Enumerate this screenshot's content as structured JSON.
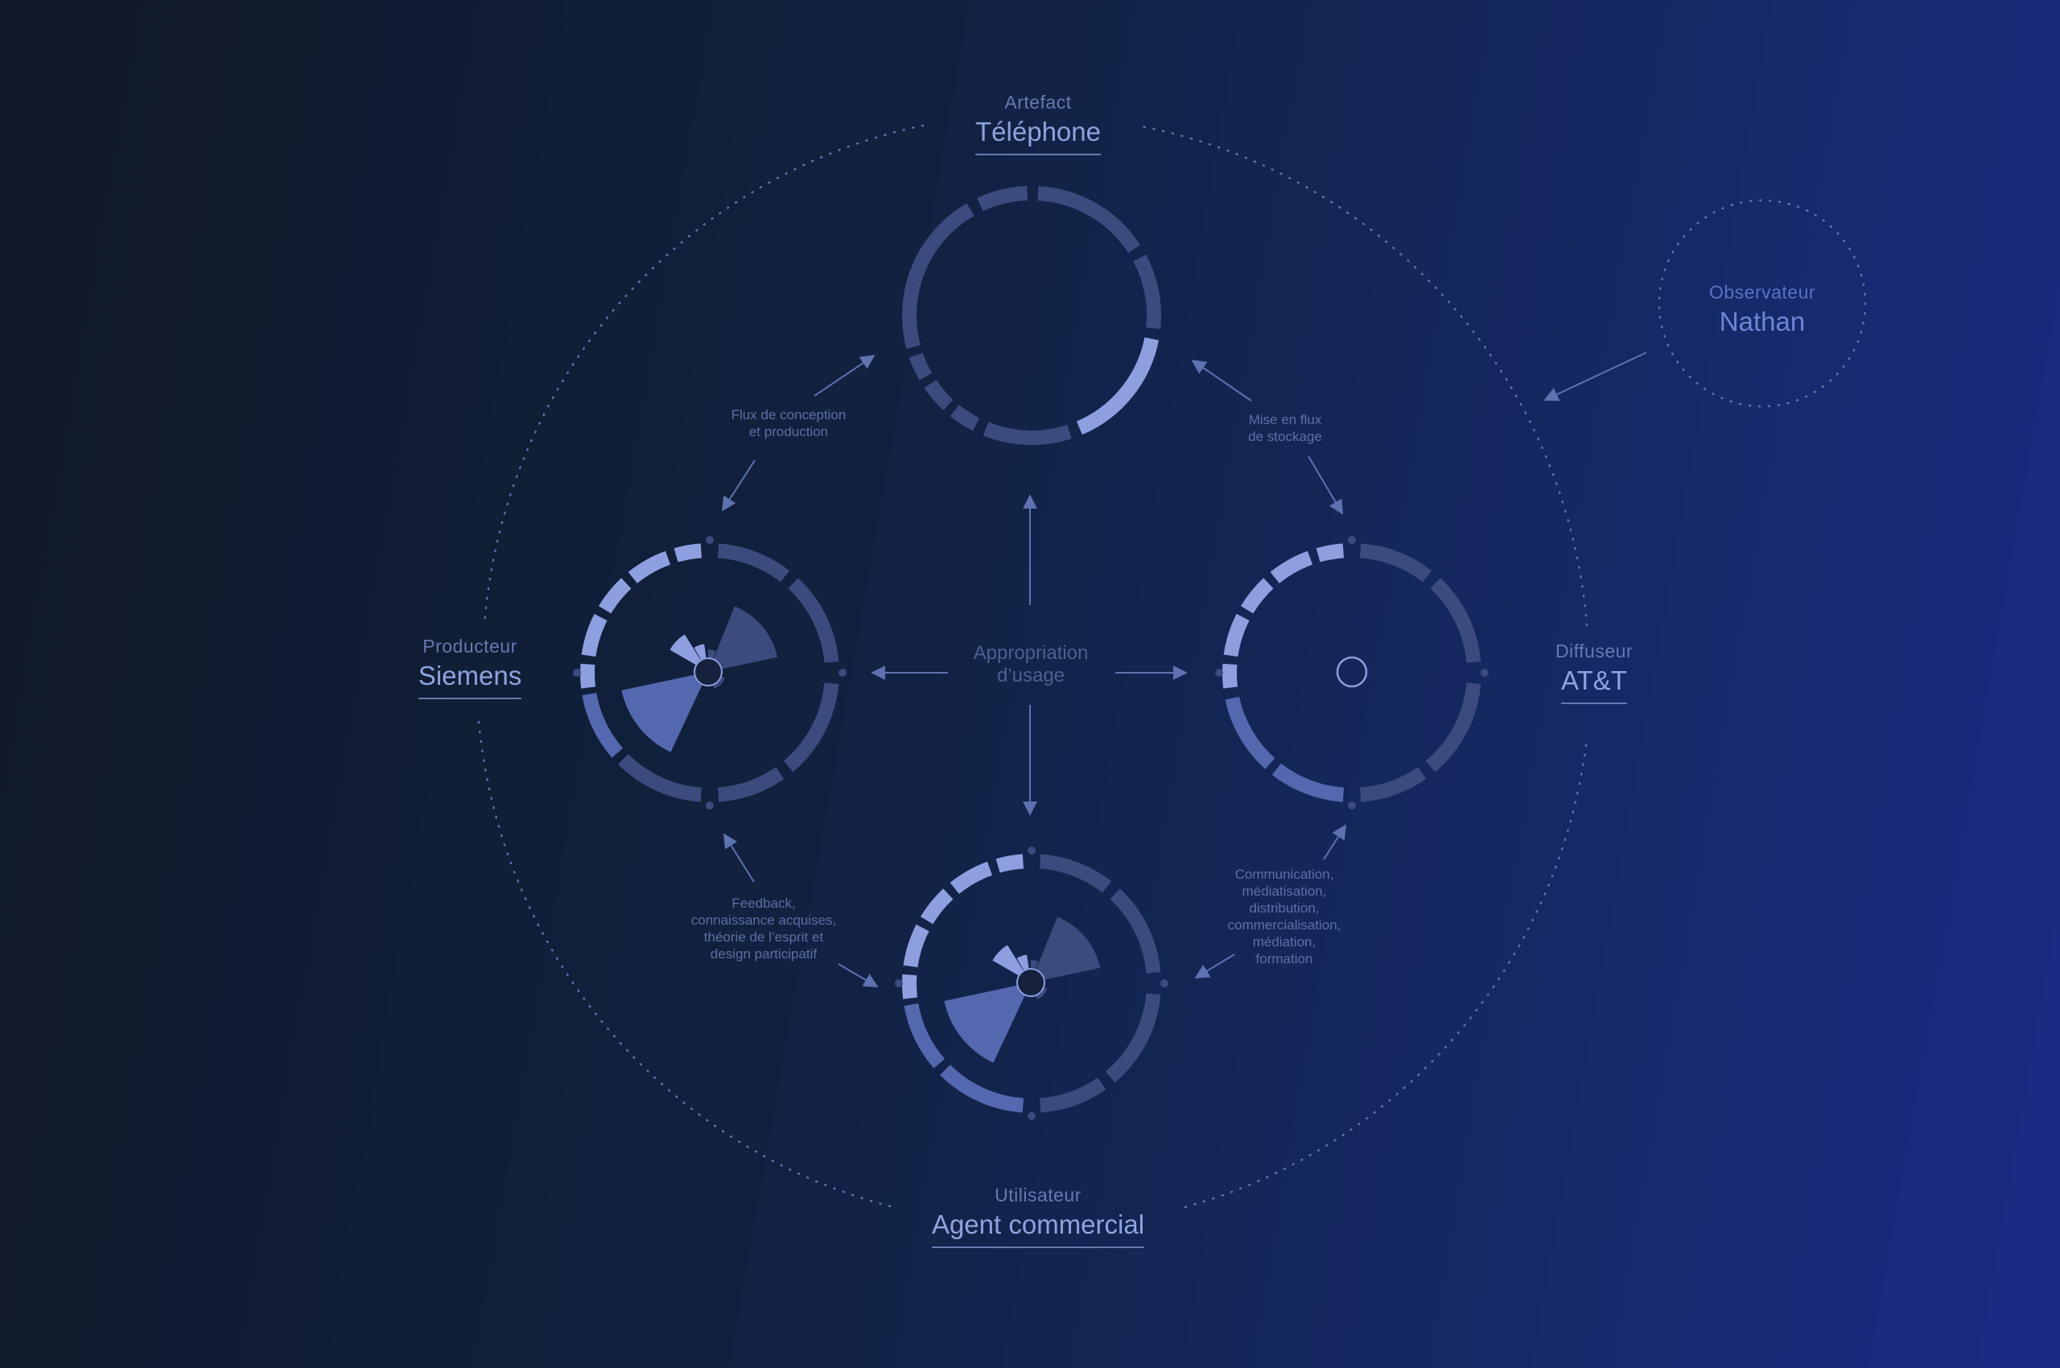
{
  "colors": {
    "ring_dark": "#3b4b7d",
    "ring_mid": "#5468b0",
    "ring_light": "#8e9fe0",
    "arrow": "#5e72b0",
    "dots": "#6173aa"
  },
  "nodes": {
    "artefact": {
      "role": "Artefact",
      "name": "Téléphone"
    },
    "producteur": {
      "role": "Producteur",
      "name": "Siemens"
    },
    "diffuseur": {
      "role": "Diffuseur",
      "name": "AT&T"
    },
    "utilisateur": {
      "role": "Utilisateur",
      "name": "Agent commercial"
    },
    "observateur": {
      "role": "Observateur",
      "name": "Nathan"
    }
  },
  "flows": {
    "conception": [
      "Flux de conception",
      "et production"
    ],
    "stockage": [
      "Mise en flux",
      "de stockage"
    ],
    "feedback": [
      "Feedback,",
      "connaissance acquises,",
      "théorie de l’esprit et",
      "design participatif"
    ],
    "communication": [
      "Communication,",
      "médiatisation,",
      "distribution,",
      "commercialisation,",
      "médiation,",
      "formation"
    ]
  },
  "center": [
    "Appropriation",
    "d’usage"
  ]
}
